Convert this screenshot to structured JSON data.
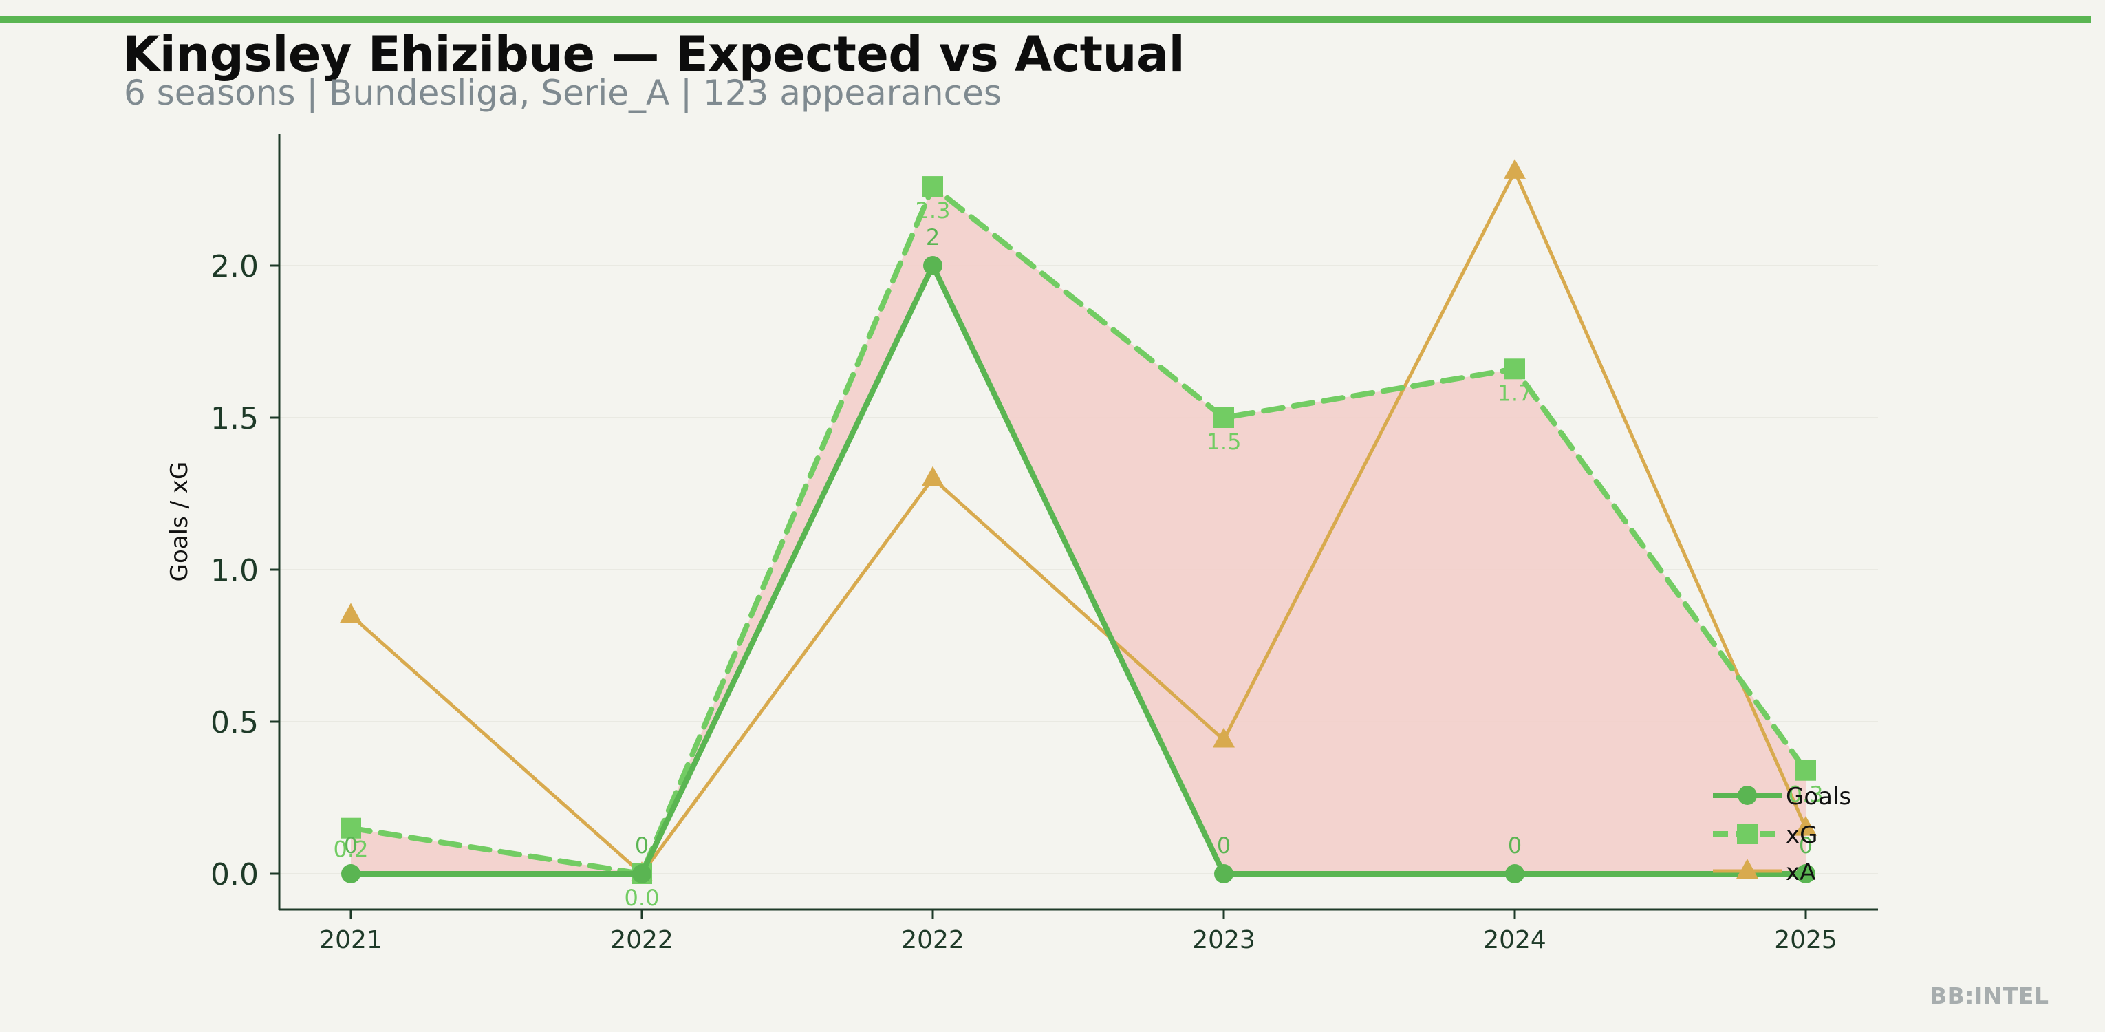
{
  "header": {
    "title": "Kingsley Ehizibue — Expected vs Actual",
    "subtitle": "6 seasons | Bundesliga, Serie_A | 123 appearances"
  },
  "footer": {
    "brand": "BB:INTEL"
  },
  "colors": {
    "accent": "#5ab552",
    "goals": "#5ab552",
    "xg": "#72cc63",
    "xa": "#d8aa4e",
    "gap_fill": "#f3cfcb",
    "axis": "#1e3a28"
  },
  "chart_data": {
    "type": "line",
    "title": "Kingsley Ehizibue — Expected vs Actual",
    "xlabel": "",
    "ylabel": "Goals / xG",
    "categories": [
      "2021",
      "2022",
      "2022",
      "2023",
      "2024",
      "2025"
    ],
    "ylim": [
      -0.11,
      2.45
    ],
    "yticks": [
      0.0,
      0.5,
      1.0,
      1.5,
      2.0
    ],
    "ytick_labels": [
      "0.0",
      "0.5",
      "1.0",
      "1.5",
      "2.0"
    ],
    "grid": true,
    "legend": "lower-right",
    "series": [
      {
        "name": "Goals",
        "marker": "circle",
        "style": "solid",
        "values": [
          0,
          0,
          2,
          0,
          0,
          0
        ],
        "labels": [
          "0",
          "0",
          "2",
          "0",
          "0",
          "0"
        ]
      },
      {
        "name": "xG",
        "marker": "square",
        "style": "dashed",
        "values": [
          0.15,
          0.0,
          2.26,
          1.5,
          1.66,
          0.34
        ],
        "labels": [
          "0.2",
          "0.0",
          "2.3",
          "1.5",
          "1.7",
          "0.3"
        ]
      },
      {
        "name": "xA",
        "marker": "triangle",
        "style": "solid",
        "values": [
          0.85,
          0.0,
          1.3,
          0.44,
          2.31,
          0.15
        ]
      }
    ]
  }
}
